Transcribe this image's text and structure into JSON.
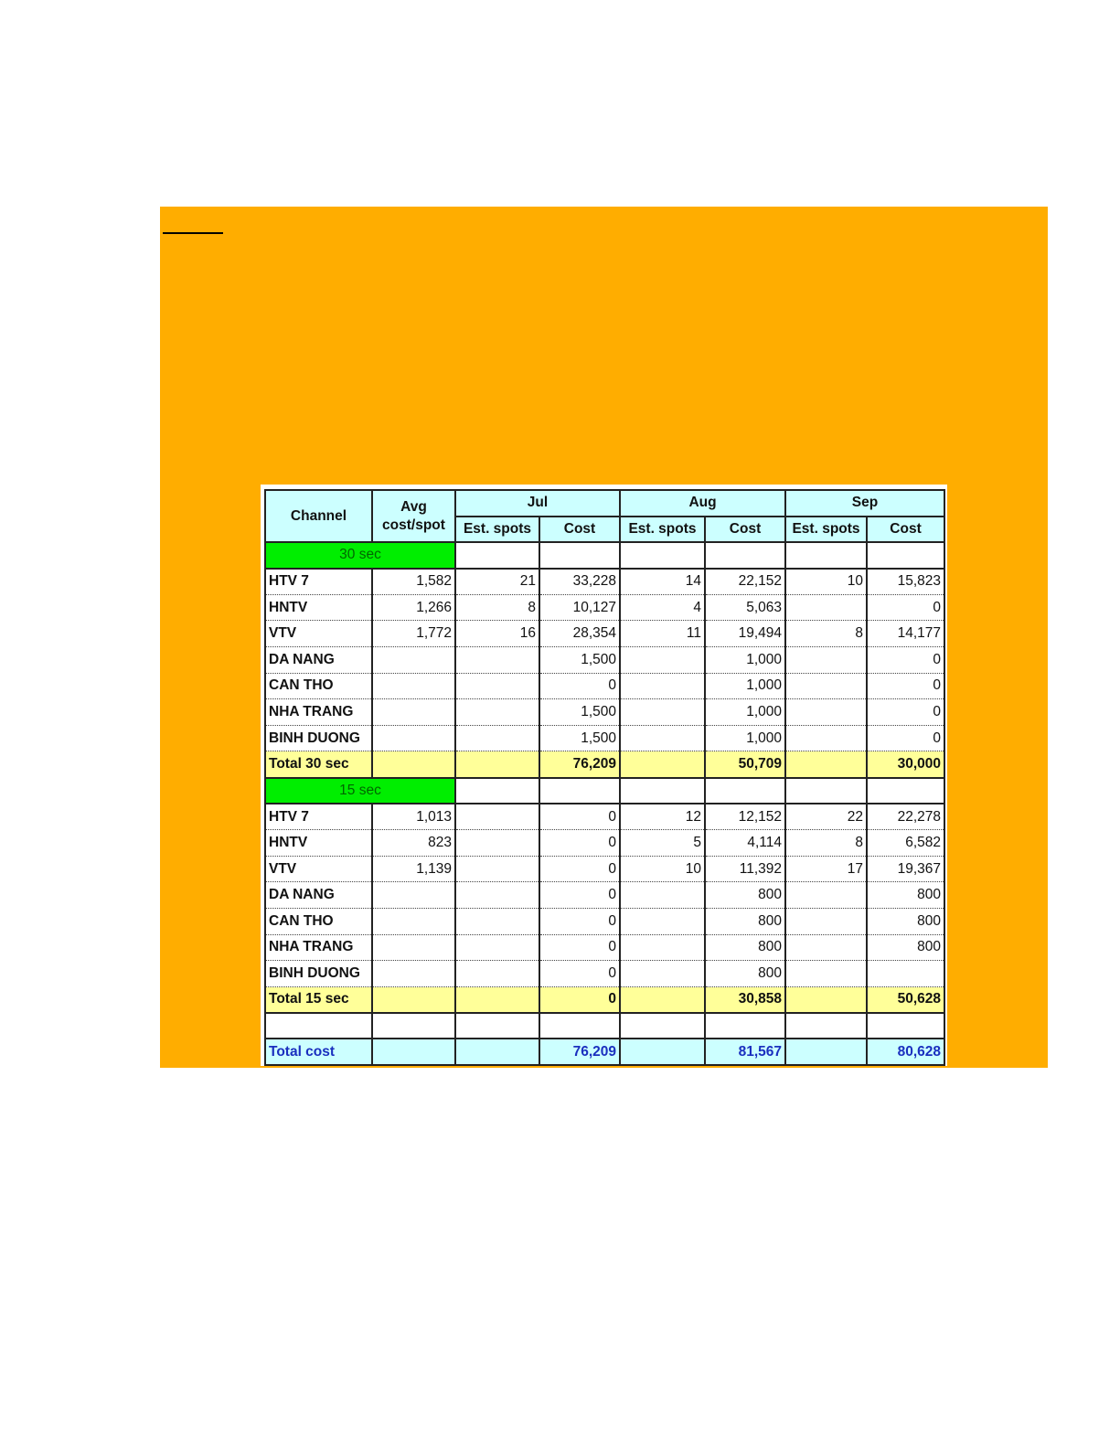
{
  "table": {
    "headers": {
      "channel": "Channel",
      "avg": "Avg cost/spot",
      "months": [
        "Jul",
        "Aug",
        "Sep"
      ],
      "est_spots": "Est. spots",
      "cost": "Cost"
    },
    "sections": [
      {
        "label": "30 sec",
        "rows": [
          {
            "channel": "HTV 7",
            "avg": "1,582",
            "jul_spots": "21",
            "jul_cost": "33,228",
            "aug_spots": "14",
            "aug_cost": "22,152",
            "sep_spots": "10",
            "sep_cost": "15,823"
          },
          {
            "channel": "HNTV",
            "avg": "1,266",
            "jul_spots": "8",
            "jul_cost": "10,127",
            "aug_spots": "4",
            "aug_cost": "5,063",
            "sep_spots": "",
            "sep_cost": "0"
          },
          {
            "channel": "VTV",
            "avg": "1,772",
            "jul_spots": "16",
            "jul_cost": "28,354",
            "aug_spots": "11",
            "aug_cost": "19,494",
            "sep_spots": "8",
            "sep_cost": "14,177"
          },
          {
            "channel": "DA NANG",
            "avg": "",
            "jul_spots": "",
            "jul_cost": "1,500",
            "aug_spots": "",
            "aug_cost": "1,000",
            "sep_spots": "",
            "sep_cost": "0"
          },
          {
            "channel": "CAN THO",
            "avg": "",
            "jul_spots": "",
            "jul_cost": "0",
            "aug_spots": "",
            "aug_cost": "1,000",
            "sep_spots": "",
            "sep_cost": "0"
          },
          {
            "channel": "NHA TRANG",
            "avg": "",
            "jul_spots": "",
            "jul_cost": "1,500",
            "aug_spots": "",
            "aug_cost": "1,000",
            "sep_spots": "",
            "sep_cost": "0"
          },
          {
            "channel": "BINH DUONG",
            "avg": "",
            "jul_spots": "",
            "jul_cost": "1,500",
            "aug_spots": "",
            "aug_cost": "1,000",
            "sep_spots": "",
            "sep_cost": "0"
          }
        ],
        "total": {
          "label": "Total 30 sec",
          "jul": "76,209",
          "aug": "50,709",
          "sep": "30,000"
        }
      },
      {
        "label": "15 sec",
        "rows": [
          {
            "channel": "HTV 7",
            "avg": "1,013",
            "jul_spots": "",
            "jul_cost": "0",
            "aug_spots": "12",
            "aug_cost": "12,152",
            "sep_spots": "22",
            "sep_cost": "22,278"
          },
          {
            "channel": "HNTV",
            "avg": "823",
            "jul_spots": "",
            "jul_cost": "0",
            "aug_spots": "5",
            "aug_cost": "4,114",
            "sep_spots": "8",
            "sep_cost": "6,582"
          },
          {
            "channel": "VTV",
            "avg": "1,139",
            "jul_spots": "",
            "jul_cost": "0",
            "aug_spots": "10",
            "aug_cost": "11,392",
            "sep_spots": "17",
            "sep_cost": "19,367"
          },
          {
            "channel": "DA NANG",
            "avg": "",
            "jul_spots": "",
            "jul_cost": "0",
            "aug_spots": "",
            "aug_cost": "800",
            "sep_spots": "",
            "sep_cost": "800"
          },
          {
            "channel": "CAN THO",
            "avg": "",
            "jul_spots": "",
            "jul_cost": "0",
            "aug_spots": "",
            "aug_cost": "800",
            "sep_spots": "",
            "sep_cost": "800"
          },
          {
            "channel": "NHA TRANG",
            "avg": "",
            "jul_spots": "",
            "jul_cost": "0",
            "aug_spots": "",
            "aug_cost": "800",
            "sep_spots": "",
            "sep_cost": "800"
          },
          {
            "channel": "BINH DUONG",
            "avg": "",
            "jul_spots": "",
            "jul_cost": "0",
            "aug_spots": "",
            "aug_cost": "800",
            "sep_spots": "",
            "sep_cost": ""
          }
        ],
        "total": {
          "label": "Total 15 sec",
          "jul": "0",
          "aug": "30,858",
          "sep": "50,628"
        }
      }
    ],
    "grand_total": {
      "label": "Total cost",
      "jul": "76,209",
      "aug": "81,567",
      "sep": "80,628"
    }
  },
  "colors": {
    "background_box": "#FFAD00",
    "header": "#CCFFFF",
    "section": "#00EE00",
    "subtotal": "#FFFF99",
    "total_text": "#1a2fbf"
  }
}
